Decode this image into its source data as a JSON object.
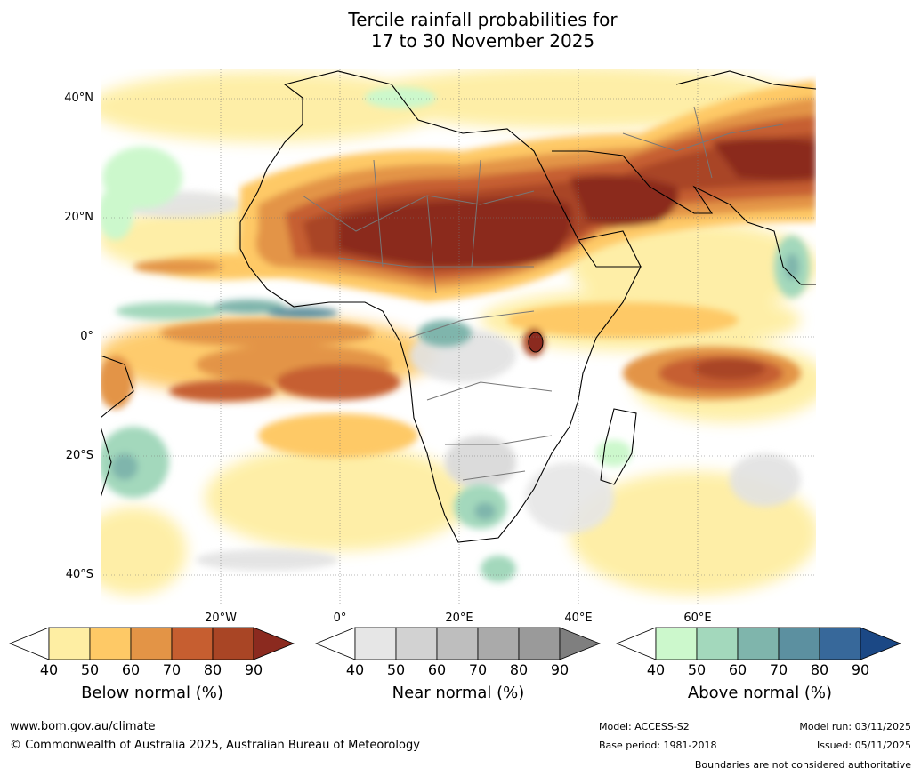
{
  "title": {
    "line1": "Tercile rainfall probabilities for",
    "line2": "17 to 30 November 2025"
  },
  "axes": {
    "lat_labels": [
      "40°N",
      "20°N",
      "0°",
      "20°S",
      "40°S"
    ],
    "lon_labels": [
      "20°W",
      "0°",
      "20°E",
      "40°E",
      "60°E"
    ]
  },
  "legends": [
    {
      "label": "Below normal (%)",
      "ticks": [
        "40",
        "50",
        "60",
        "70",
        "80",
        "90"
      ],
      "colors": [
        "#ffffff",
        "#feeea3",
        "#fec966",
        "#e39446",
        "#c65e30",
        "#a94525",
        "#8b2a1f"
      ]
    },
    {
      "label": "Near normal (%)",
      "ticks": [
        "40",
        "50",
        "60",
        "70",
        "80",
        "90"
      ],
      "colors": [
        "#ffffff",
        "#e6e6e6",
        "#d2d2d2",
        "#bebebe",
        "#aaaaaa",
        "#9a9a9a",
        "#7f7f7f"
      ]
    },
    {
      "label": "Above normal (%)",
      "ticks": [
        "40",
        "50",
        "60",
        "70",
        "80",
        "90"
      ],
      "colors": [
        "#ffffff",
        "#ccf8cc",
        "#a3d8bc",
        "#7fb5ac",
        "#5c90a0",
        "#37689a",
        "#1b4885"
      ]
    }
  ],
  "footer": {
    "website": "www.bom.gov.au/climate",
    "copyright": "© Commonwealth of Australia 2025, Australian Bureau of Meteorology",
    "model": "Model: ACCESS-S2",
    "base_period": "Base period: 1981-2018",
    "model_run": "Model run: 03/11/2025",
    "issued": "Issued: 05/11/2025",
    "disclaimer": "Boundaries are not considered authoritative"
  }
}
